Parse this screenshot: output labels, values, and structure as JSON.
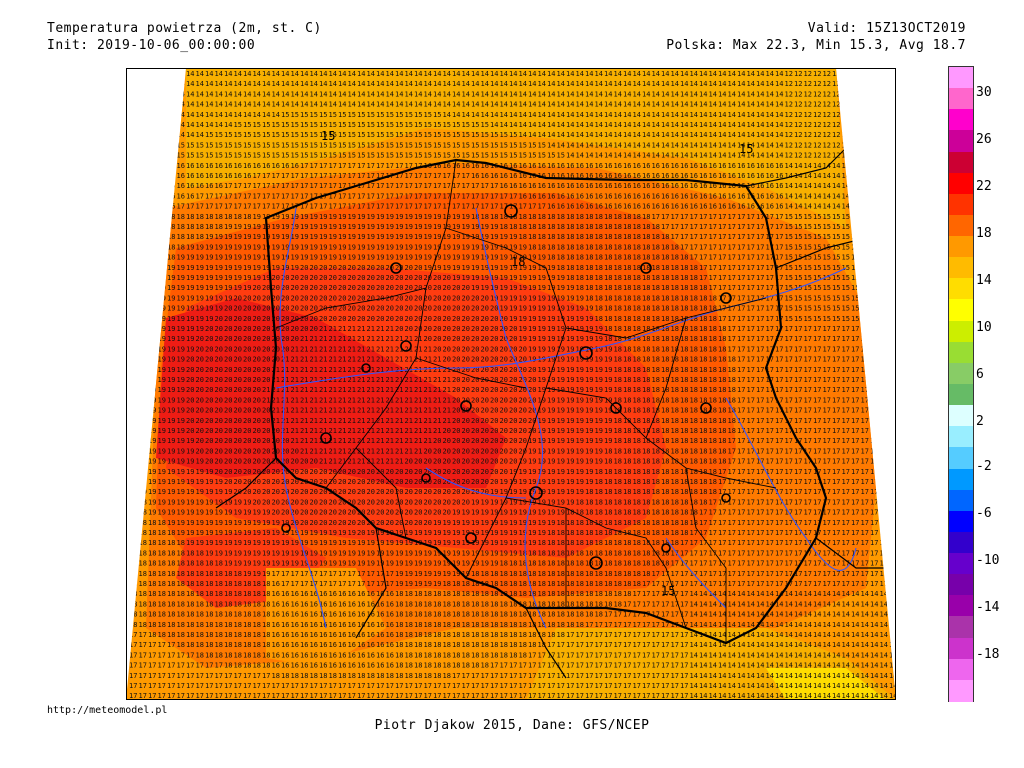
{
  "header": {
    "title": "Temperatura powietrza (2m, st. C)",
    "init": "Init: 2019-10-06_00:00:00",
    "valid": "Valid: 15Z13OCT2019",
    "stats": "Polska: Max 22.3, Min 15.3, Avg 18.7"
  },
  "legend": {
    "labels": [
      "30",
      "26",
      "22",
      "18",
      "14",
      "10",
      "6",
      "2",
      "-2",
      "-6",
      "-10",
      "-14",
      "-18"
    ],
    "colors": [
      "#ff99ff",
      "#ff66cc",
      "#ff00cc",
      "#cc0099",
      "#cc0033",
      "#ff0000",
      "#ff3300",
      "#ff6600",
      "#ff9900",
      "#ffbb00",
      "#ffdd00",
      "#ffff00",
      "#ccee00",
      "#99dd33",
      "#88cc66",
      "#66bb66",
      "#ddffff",
      "#99eeff",
      "#55ccff",
      "#0099ff",
      "#0066ff",
      "#0000ff",
      "#3300cc",
      "#6600cc",
      "#7700aa",
      "#9900aa",
      "#aa33aa",
      "#cc33cc",
      "#ee66ee",
      "#ff99ff"
    ],
    "colors_desc": "color bar top to bottom, approx 2 degree steps"
  },
  "map": {
    "contour_labels": [
      "15",
      "18",
      "15",
      "15"
    ],
    "colors": {
      "c13": "#f8b000",
      "c15": "#ff9a00",
      "c17": "#ff7a00",
      "c18": "#ff5a00",
      "c20": "#ff3c10",
      "c21": "#ee1c14",
      "border": "#000000",
      "river": "#3355ff"
    }
  },
  "footer": {
    "url": "http://meteomodel.pl",
    "credits": "Piotr Djakow 2015, Dane: GFS/NCEP"
  }
}
